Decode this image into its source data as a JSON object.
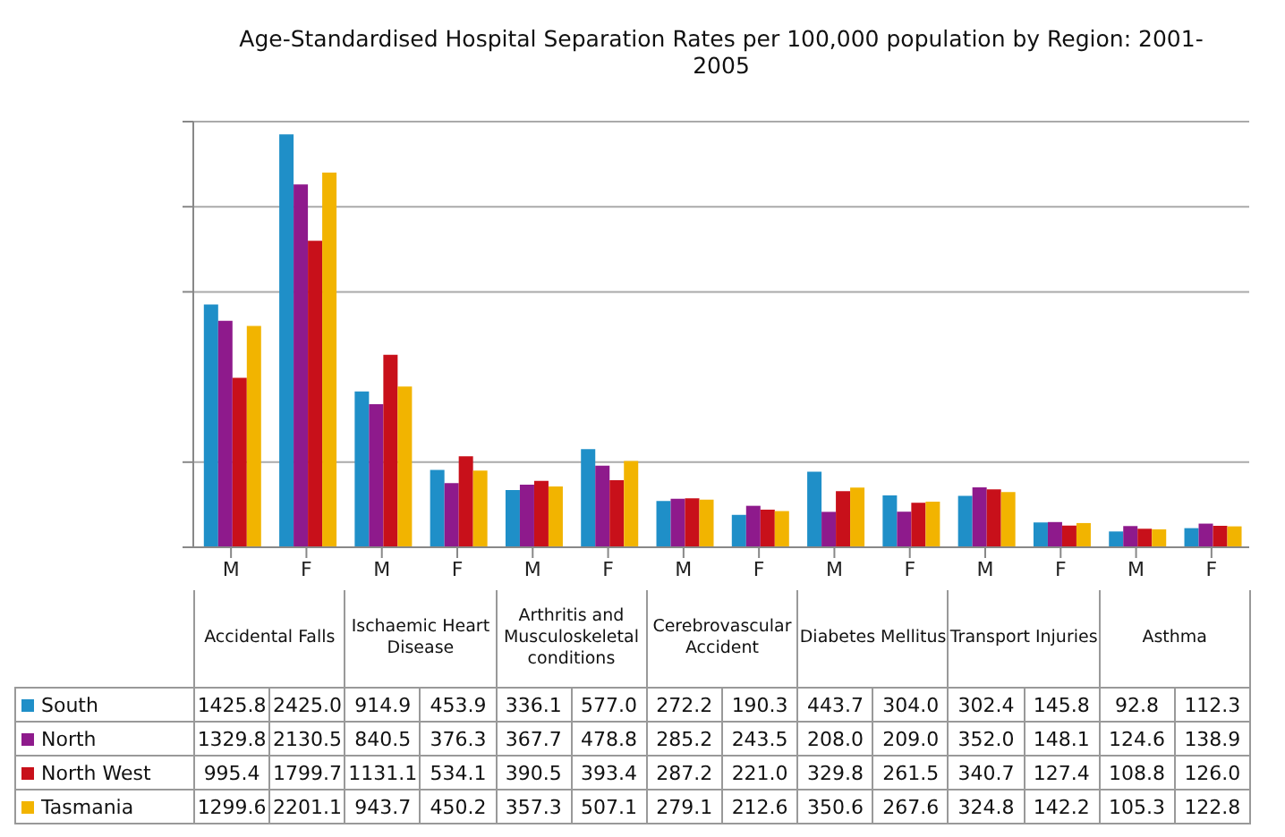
{
  "chart_data": {
    "type": "bar",
    "title": "Age-Standardised Hospital Separation Rates per 100,000 population by Region: 2001-2005",
    "categories": [
      "M",
      "F",
      "M",
      "F",
      "M",
      "F",
      "M",
      "F",
      "M",
      "F",
      "M",
      "F",
      "M",
      "F"
    ],
    "annotations": [
      "Accidental Falls",
      "Ischaemic Heart Disease",
      "Arthritis and Musculoskeletal conditions",
      "Cerebrovascular Accident",
      "Diabetes Mellitus",
      "Transport Injuries",
      "Asthma"
    ],
    "series": [
      {
        "name": "South",
        "color": "#1f8fc8",
        "values": [
          1425.8,
          2425.0,
          914.9,
          453.9,
          336.1,
          577.0,
          272.2,
          190.3,
          443.7,
          304.0,
          302.4,
          145.8,
          92.8,
          112.3
        ],
        "value_labels": [
          "1425.8",
          "2425.0",
          "914.9",
          "453.9",
          "336.1",
          "577.0",
          "272.2",
          "190.3",
          "443.7",
          "304.0",
          "302.4",
          "145.8",
          "92.8",
          "112.3"
        ]
      },
      {
        "name": "North",
        "color": "#8e1a8c",
        "values": [
          1329.8,
          2130.5,
          840.5,
          376.3,
          367.7,
          478.8,
          285.2,
          243.5,
          208.0,
          209.0,
          352.0,
          148.1,
          124.6,
          138.9
        ],
        "value_labels": [
          "1329.8",
          "2130.5",
          "840.5",
          "376.3",
          "367.7",
          "478.8",
          "285.2",
          "243.5",
          "208.0",
          "209.0",
          "352.0",
          "148.1",
          "124.6",
          "138.9"
        ]
      },
      {
        "name": "North West",
        "color": "#c8101a",
        "values": [
          995.4,
          1799.7,
          1131.1,
          534.1,
          390.5,
          393.4,
          287.2,
          221.0,
          329.8,
          261.5,
          340.7,
          127.4,
          108.8,
          126.0
        ],
        "value_labels": [
          "995.4",
          "1799.7",
          "1131.1",
          "534.1",
          "390.5",
          "393.4",
          "287.2",
          "221.0",
          "329.8",
          "261.5",
          "340.7",
          "127.4",
          "108.8",
          "126.0"
        ]
      },
      {
        "name": "Tasmania",
        "color": "#f2b400",
        "values": [
          1299.6,
          2201.1,
          943.7,
          450.2,
          357.3,
          507.1,
          279.1,
          212.6,
          350.6,
          267.6,
          324.8,
          142.2,
          105.3,
          122.8
        ],
        "value_labels": [
          "1299.6",
          "2201.1",
          "943.7",
          "450.2",
          "357.3",
          "507.1",
          "279.1",
          "212.6",
          "350.6",
          "267.6",
          "324.8",
          "142.2",
          "105.3",
          "122.8"
        ]
      }
    ],
    "ylim": [
      0,
      2500
    ],
    "yticks": [
      {
        "value": 0,
        "label": null
      },
      {
        "value": 500,
        "label": null
      },
      {
        "value": 1500,
        "label": null
      },
      {
        "value": 2000,
        "label": null
      },
      {
        "value": 2500,
        "label": null
      }
    ],
    "tick_labels": "x",
    "grid": "y",
    "legend": "bottom"
  }
}
